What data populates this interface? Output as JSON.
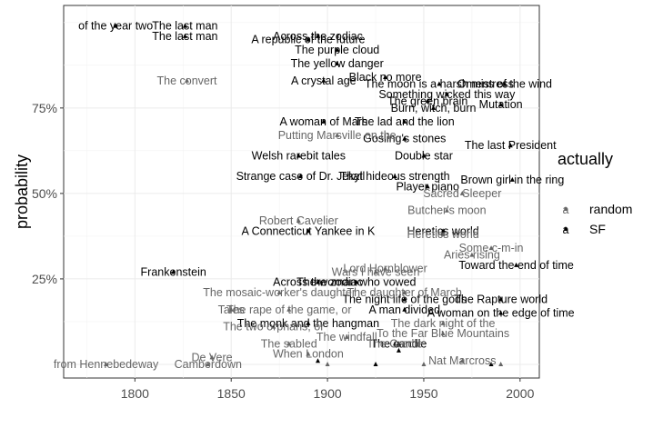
{
  "chart_data": {
    "type": "scatter",
    "title": "",
    "xlabel": "",
    "ylabel": "probability",
    "xlim": [
      1763,
      2010
    ],
    "ylim": [
      -0.04,
      1.05
    ],
    "x_ticks": [
      {
        "value": 1800,
        "label": "1800"
      },
      {
        "value": 1850,
        "label": "1850"
      },
      {
        "value": 1900,
        "label": "1900"
      },
      {
        "value": 1950,
        "label": "1950"
      },
      {
        "value": 2000,
        "label": "2000"
      }
    ],
    "y_ticks": [
      {
        "value": 0.25,
        "label": "25%"
      },
      {
        "value": 0.5,
        "label": "50%"
      },
      {
        "value": 0.75,
        "label": "75%"
      }
    ],
    "grid": true,
    "legend": {
      "title": "actually",
      "position": "right",
      "entries": [
        {
          "label": "random",
          "glyph": "a",
          "color": "#666666"
        },
        {
          "label": "SF",
          "glyph": "a",
          "color": "#000000"
        }
      ]
    },
    "colors": {
      "random": "#666666",
      "SF": "#000000"
    },
    "series": [
      {
        "name": "SF",
        "points": [
          {
            "x": 1790,
            "y": 0.99,
            "label": "of the year two"
          },
          {
            "x": 1820,
            "y": 0.27,
            "label": "Frankenstein"
          },
          {
            "x": 1826,
            "y": 0.96,
            "label": "The last man"
          },
          {
            "x": 1826,
            "y": 0.99,
            "label": "The last man"
          },
          {
            "x": 1895,
            "y": 0.96,
            "label": "Across the zodiac"
          },
          {
            "x": 1890,
            "y": 0.95,
            "label": "A republic of the future"
          },
          {
            "x": 1905,
            "y": 0.92,
            "label": "The purple cloud"
          },
          {
            "x": 1905,
            "y": 0.88,
            "label": "The yellow danger"
          },
          {
            "x": 1898,
            "y": 0.83,
            "label": "A crystal age"
          },
          {
            "x": 1930,
            "y": 0.84,
            "label": "Black no more"
          },
          {
            "x": 1958,
            "y": 0.82,
            "label": "The moon is a harsh mistress"
          },
          {
            "x": 1992,
            "y": 0.82,
            "label": "Omens of the wind"
          },
          {
            "x": 1962,
            "y": 0.79,
            "label": "Something wicked this way"
          },
          {
            "x": 1952,
            "y": 0.77,
            "label": "The green brain"
          },
          {
            "x": 1955,
            "y": 0.75,
            "label": "Burn, witch, burn"
          },
          {
            "x": 1990,
            "y": 0.76,
            "label": "Mutation"
          },
          {
            "x": 1898,
            "y": 0.71,
            "label": "A woman of Mars"
          },
          {
            "x": 1940,
            "y": 0.71,
            "label": "The lad and the lion"
          },
          {
            "x": 1940,
            "y": 0.66,
            "label": "Gosling's stones"
          },
          {
            "x": 1995,
            "y": 0.64,
            "label": "The last President"
          },
          {
            "x": 1950,
            "y": 0.61,
            "label": "Double star"
          },
          {
            "x": 1885,
            "y": 0.61,
            "label": "Welsh rarebit tales"
          },
          {
            "x": 1886,
            "y": 0.55,
            "label": "Strange case of Dr. Jekyll"
          },
          {
            "x": 1935,
            "y": 0.55,
            "label": "That hideous strength"
          },
          {
            "x": 1996,
            "y": 0.54,
            "label": "Brown girl in the ring"
          },
          {
            "x": 1952,
            "y": 0.52,
            "label": "Player piano"
          },
          {
            "x": 1890,
            "y": 0.39,
            "label": "A Connecticut Yankee in K"
          },
          {
            "x": 1960,
            "y": 0.39,
            "label": "Heretics world"
          },
          {
            "x": 1998,
            "y": 0.29,
            "label": "Toward the end of time"
          },
          {
            "x": 1895,
            "y": 0.24,
            "label": "Across the zodiac"
          },
          {
            "x": 1915,
            "y": 0.24,
            "label": "The woman who vowed"
          },
          {
            "x": 1940,
            "y": 0.19,
            "label": "The night life of the gods"
          },
          {
            "x": 1990,
            "y": 0.19,
            "label": "The Rapture world"
          },
          {
            "x": 1940,
            "y": 0.16,
            "label": "A man divided"
          },
          {
            "x": 1990,
            "y": 0.15,
            "label": "A woman on the edge of time"
          },
          {
            "x": 1890,
            "y": 0.12,
            "label": "The monk and the hangman"
          },
          {
            "x": 1937,
            "y": 0.06,
            "label": "The candle"
          },
          {
            "x": 1895,
            "y": 0.01,
            "label": ""
          },
          {
            "x": 1925,
            "y": 0.0,
            "label": ""
          },
          {
            "x": 1937,
            "y": 0.04,
            "label": ""
          },
          {
            "x": 1985,
            "y": 0.0,
            "label": ""
          }
        ]
      },
      {
        "name": "random",
        "points": [
          {
            "x": 1827,
            "y": 0.83,
            "label": "The convert"
          },
          {
            "x": 1905,
            "y": 0.67,
            "label": "Putting Marsville on the"
          },
          {
            "x": 1970,
            "y": 0.5,
            "label": "Sacred Sleeper"
          },
          {
            "x": 1962,
            "y": 0.45,
            "label": "Butcher's moon"
          },
          {
            "x": 1885,
            "y": 0.42,
            "label": "Robert Cavelier"
          },
          {
            "x": 1960,
            "y": 0.38,
            "label": "Heretics world"
          },
          {
            "x": 1985,
            "y": 0.34,
            "label": "Some c-m-in"
          },
          {
            "x": 1975,
            "y": 0.32,
            "label": "Aries rising"
          },
          {
            "x": 1930,
            "y": 0.28,
            "label": "Lord Hornblower"
          },
          {
            "x": 1925,
            "y": 0.27,
            "label": "Wars I have seen"
          },
          {
            "x": 1875,
            "y": 0.21,
            "label": "The mosaic-worker's daughter"
          },
          {
            "x": 1940,
            "y": 0.21,
            "label": "The daughter of March"
          },
          {
            "x": 1850,
            "y": 0.16,
            "label": "Tales"
          },
          {
            "x": 1880,
            "y": 0.16,
            "label": "The rape of the game, or"
          },
          {
            "x": 1872,
            "y": 0.11,
            "label": "The two orphans, or"
          },
          {
            "x": 1960,
            "y": 0.09,
            "label": "To the Far Blue Mountains"
          },
          {
            "x": 1910,
            "y": 0.08,
            "label": "The windfall"
          },
          {
            "x": 1880,
            "y": 0.06,
            "label": "The sabled"
          },
          {
            "x": 1960,
            "y": 0.12,
            "label": "The dark night of the"
          },
          {
            "x": 1890,
            "y": 0.03,
            "label": "When London"
          },
          {
            "x": 1840,
            "y": 0.02,
            "label": "De Vere"
          },
          {
            "x": 1785,
            "y": 0.0,
            "label": "from Hennebedeway"
          },
          {
            "x": 1838,
            "y": 0.0,
            "label": "Camberdown"
          },
          {
            "x": 1970,
            "y": 0.01,
            "label": "Nat Marcross"
          },
          {
            "x": 1935,
            "y": 0.06,
            "label": "The Cradle"
          },
          {
            "x": 1900,
            "y": 0.0,
            "label": ""
          },
          {
            "x": 1950,
            "y": 0.0,
            "label": ""
          },
          {
            "x": 1990,
            "y": 0.0,
            "label": ""
          }
        ]
      }
    ]
  }
}
